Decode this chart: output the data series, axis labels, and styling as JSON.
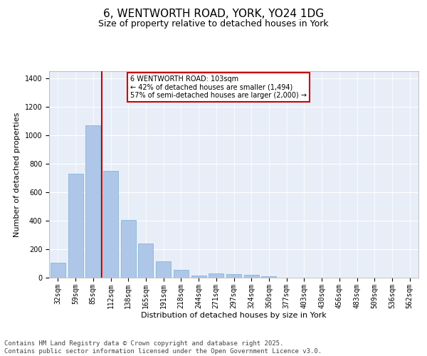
{
  "title": "6, WENTWORTH ROAD, YORK, YO24 1DG",
  "subtitle": "Size of property relative to detached houses in York",
  "xlabel": "Distribution of detached houses by size in York",
  "ylabel": "Number of detached properties",
  "categories": [
    "32sqm",
    "59sqm",
    "85sqm",
    "112sqm",
    "138sqm",
    "165sqm",
    "191sqm",
    "218sqm",
    "244sqm",
    "271sqm",
    "297sqm",
    "324sqm",
    "350sqm",
    "377sqm",
    "403sqm",
    "430sqm",
    "456sqm",
    "483sqm",
    "509sqm",
    "536sqm",
    "562sqm"
  ],
  "values": [
    105,
    730,
    1070,
    750,
    405,
    238,
    115,
    53,
    15,
    28,
    25,
    18,
    10,
    0,
    0,
    0,
    0,
    0,
    0,
    0,
    0
  ],
  "bar_color": "#aec6e8",
  "bar_edge_color": "#7aafd4",
  "highlight_line_color": "#cc0000",
  "annotation_text": "6 WENTWORTH ROAD: 103sqm\n← 42% of detached houses are smaller (1,494)\n57% of semi-detached houses are larger (2,000) →",
  "annotation_box_color": "#cc0000",
  "annotation_bg": "#ffffff",
  "ylim": [
    0,
    1450
  ],
  "yticks": [
    0,
    200,
    400,
    600,
    800,
    1000,
    1200,
    1400
  ],
  "footer_text": "Contains HM Land Registry data © Crown copyright and database right 2025.\nContains public sector information licensed under the Open Government Licence v3.0.",
  "bg_color": "#e8eef8",
  "title_fontsize": 11,
  "subtitle_fontsize": 9,
  "tick_fontsize": 7,
  "ylabel_fontsize": 8,
  "xlabel_fontsize": 8,
  "footer_fontsize": 6.5
}
